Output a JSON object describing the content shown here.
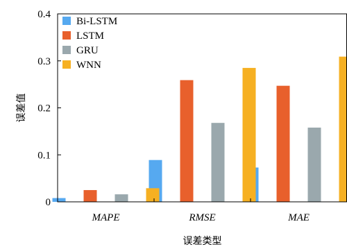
{
  "chart_data": {
    "type": "bar",
    "xlabel": "误差类型",
    "ylabel": "误差值",
    "categories": [
      "MAPE",
      "RMSE",
      "MAE"
    ],
    "ylim": [
      0,
      0.4
    ],
    "yticks": [
      {
        "value": 0,
        "label": "0"
      },
      {
        "value": 0.1,
        "label": "0.1"
      },
      {
        "value": 0.2,
        "label": "0.2"
      },
      {
        "value": 0.3,
        "label": "0.3"
      },
      {
        "value": 0.4,
        "label": "0.4"
      }
    ],
    "legend_position": "top-left",
    "grid": false,
    "series": [
      {
        "name": "Bi-LSTM",
        "color": "#56a9f0",
        "values": [
          0.008,
          0.089,
          0.073
        ]
      },
      {
        "name": "LSTM",
        "color": "#e8602c",
        "values": [
          0.025,
          0.259,
          0.247
        ]
      },
      {
        "name": "GRU",
        "color": "#9aa8ad",
        "values": [
          0.016,
          0.168,
          0.158
        ]
      },
      {
        "name": "WNN",
        "color": "#f6b022",
        "values": [
          0.029,
          0.285,
          0.309
        ]
      }
    ]
  }
}
